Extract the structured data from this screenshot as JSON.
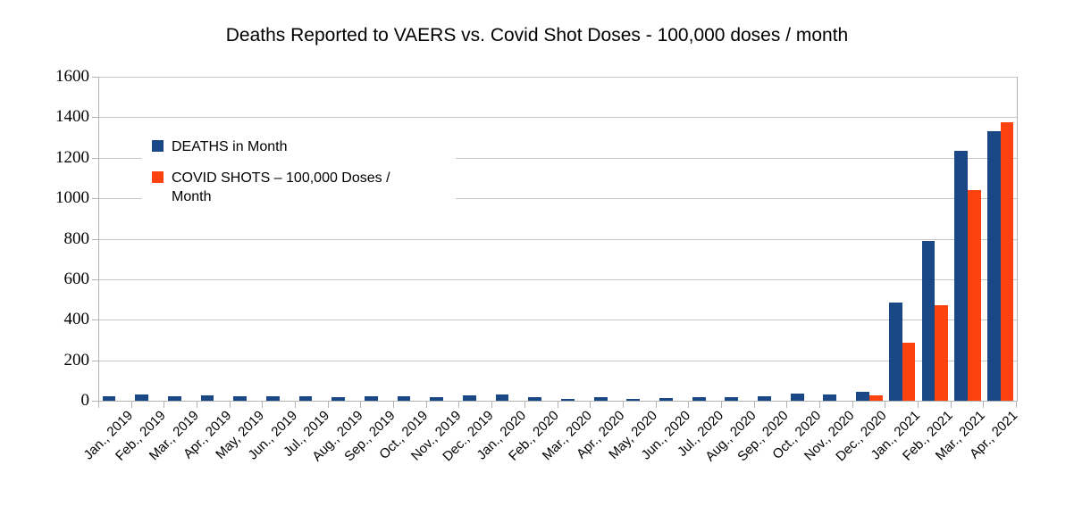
{
  "chart_data": {
    "type": "bar",
    "title": "Deaths Reported to VAERS vs. Covid Shot Doses - 100,000 doses / month",
    "categories": [
      "Jan., 2019",
      "Feb., 2019",
      "Mar., 2019",
      "Apr., 2019",
      "May, 2019",
      "Jun., 2019",
      "Jul., 2019",
      "Aug., 2019",
      "Sep., 2019",
      "Oct., 2019",
      "Nov., 2019",
      "Dec., 2019",
      "Jan., 2020",
      "Feb., 2020",
      "Mar., 2020",
      "Apr., 2020",
      "May, 2020",
      "Jun., 2020",
      "Jul., 2020",
      "Aug., 2020",
      "Sep., 2020",
      "Oct., 2020",
      "Nov., 2020",
      "Dec., 2020",
      "Jan., 2021",
      "Feb., 2021",
      "Mar., 2021",
      "Apr., 2021"
    ],
    "series": [
      {
        "name": "DEATHS in Month",
        "color": "#1A4786",
        "values": [
          20,
          32,
          23,
          28,
          23,
          23,
          24,
          19,
          20,
          20,
          19,
          25,
          29,
          19,
          8,
          16,
          10,
          12,
          18,
          16,
          22,
          37,
          29,
          45,
          485,
          790,
          1235,
          1330
        ]
      },
      {
        "name": "COVID SHOTS – 100,000 Doses / Month",
        "color": "#FC420E",
        "values": [
          0,
          0,
          0,
          0,
          0,
          0,
          0,
          0,
          0,
          0,
          0,
          0,
          0,
          0,
          0,
          0,
          0,
          0,
          0,
          0,
          0,
          0,
          0,
          28,
          285,
          470,
          1040,
          1375
        ]
      }
    ],
    "ylim": [
      0,
      1600
    ],
    "yticks": [
      0,
      200,
      400,
      600,
      800,
      1000,
      1200,
      1400,
      1600
    ],
    "grid": "horizontal",
    "legend_position": "upper-left-inside",
    "axis_color": "#b3b3b3",
    "grid_color": "#c6c6c6",
    "background_color": "#ffffff",
    "text_color": "#000000"
  }
}
